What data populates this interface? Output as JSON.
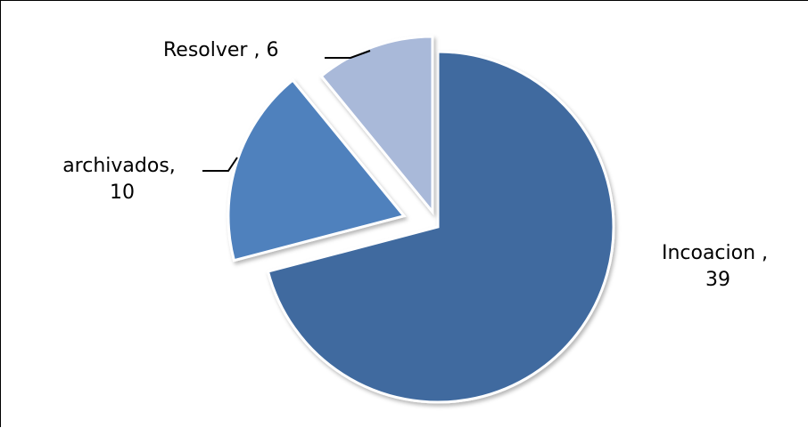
{
  "chart_data": {
    "type": "pie",
    "title": "",
    "slices": [
      {
        "label": "Incoacion",
        "value": 39,
        "color": "#3f6a9f",
        "exploded": false
      },
      {
        "label": "archivados",
        "value": 10,
        "color": "#4f81bd",
        "exploded": true
      },
      {
        "label": "Resolver",
        "value": 6,
        "color": "#a9b9d9",
        "exploded": true
      }
    ],
    "data_labels": [
      {
        "line1": "Incoacion ,",
        "line2": "39"
      },
      {
        "line1": "archivados,",
        "line2": "10"
      },
      {
        "line1": "Resolver , 6",
        "line2": ""
      }
    ],
    "legend": "none",
    "start_angle": "12 o'clock, clockwise"
  }
}
